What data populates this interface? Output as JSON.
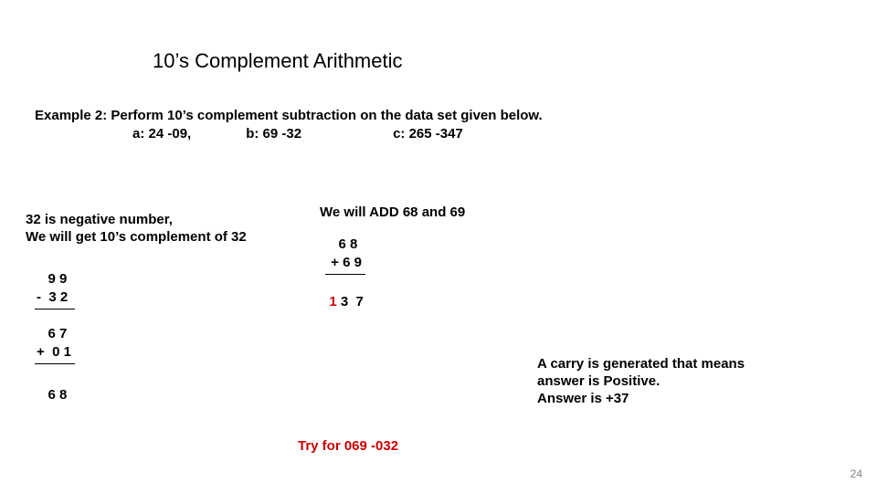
{
  "title": "10’s Complement Arithmetic",
  "example_line": "Example 2: Perform  10’s complement subtraction on the data set given below.",
  "dataset": {
    "a": "a:  24 -09,",
    "b": "b: 69 -32",
    "c": "c: 265 -347"
  },
  "left": {
    "expl_l1": "32 is negative number,",
    "expl_l2": "We will get 10’s complement of 32",
    "calc1_l1": "   9 9",
    "calc1_l2": "-  3 2",
    "calc2_l1": "   6 7",
    "calc2_l2": "+  0 1",
    "calc2_res": "   6 8"
  },
  "right": {
    "expl": "We will ADD 68 and 69",
    "calc_l1": "   6 8",
    "calc_l2": " + 6 9",
    "carry": "  1",
    "rest": " 3  7"
  },
  "carry_note": {
    "l1": "A carry is generated that means",
    "l2": "answer is Positive.",
    "l3": "Answer is +37"
  },
  "tryfor": "Try for 069 -032",
  "pagenum": "24",
  "colors": {
    "accent_red": "#cc0000",
    "pagenum_gray": "#808080",
    "text": "#000000",
    "background": "#ffffff"
  }
}
